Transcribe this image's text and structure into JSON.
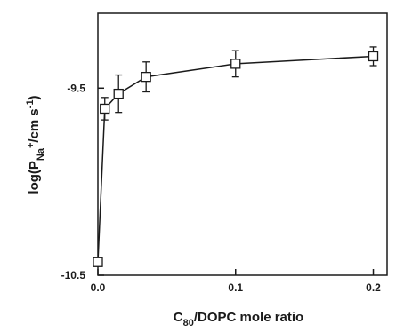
{
  "chart_data": {
    "type": "line",
    "x": [
      0.0,
      0.005,
      0.015,
      0.035,
      0.1,
      0.2
    ],
    "series": [
      {
        "values": [
          -10.43,
          -9.61,
          -9.53,
          -9.44,
          -9.37,
          -9.33
        ],
        "error": [
          0.0,
          0.06,
          0.1,
          0.08,
          0.07,
          0.05
        ]
      }
    ],
    "xlim": [
      0.0,
      0.21
    ],
    "ylim": [
      -10.5,
      -9.1
    ],
    "xticks": [
      0.0,
      0.1,
      0.2
    ],
    "xtick_labels": [
      "0.0",
      "0.1",
      "0.2"
    ],
    "yticks": [
      -10.5,
      -9.5
    ],
    "ytick_labels": [
      "-10.5",
      "-9.5"
    ],
    "xlabel": {
      "c": "C",
      "sub": "80",
      "rest": "/DOPC mole ratio"
    },
    "ylabel": {
      "pre": "log(P",
      "sub": "Na",
      "sup_sign": "+",
      "post": "/cm s",
      "exp": "-1",
      "close": ")"
    },
    "grid": false,
    "legend": "none",
    "marker": "open-square",
    "colors": {
      "ink": "#1a1a1a",
      "background": "#ffffff"
    }
  }
}
